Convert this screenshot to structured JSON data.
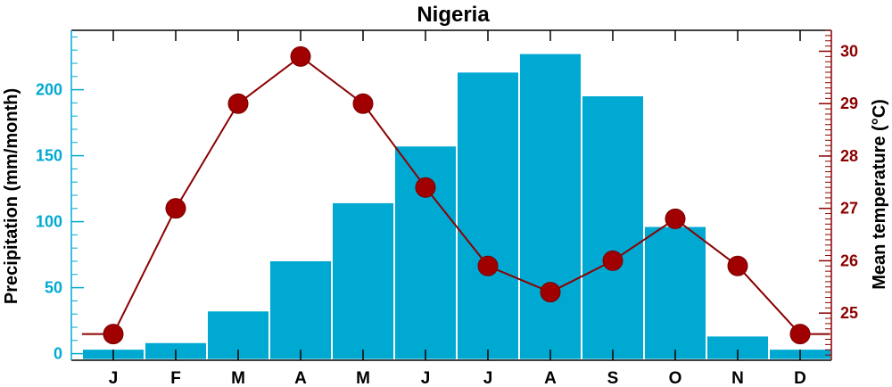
{
  "chart_data": {
    "type": "bar",
    "title": "Nigeria",
    "categories": [
      "J",
      "F",
      "M",
      "A",
      "M",
      "J",
      "J",
      "A",
      "S",
      "O",
      "N",
      "D"
    ],
    "series": [
      {
        "type": "bar",
        "axis": "left",
        "values": [
          3,
          8,
          32,
          70,
          114,
          157,
          213,
          227,
          195,
          96,
          13,
          3
        ]
      },
      {
        "type": "line",
        "axis": "right",
        "values": [
          24.6,
          27.0,
          29.0,
          29.9,
          29.0,
          27.4,
          25.9,
          25.4,
          26.0,
          26.8,
          25.9,
          24.6
        ]
      }
    ],
    "ylabel": "Precipitation (mm/month)",
    "y2label": "Mean temperature (°C)",
    "ylim": [
      -5,
      245
    ],
    "y2lim": [
      24.1,
      30.4
    ],
    "yticks": [
      0,
      50,
      100,
      150,
      200
    ],
    "y2ticks": [
      25,
      26,
      27,
      28,
      29,
      30
    ],
    "grid": false,
    "colors": {
      "bar": "#00a9d2",
      "line": "#8b0000",
      "marker": "#a00000",
      "left_axis": "#00a9d2",
      "right_axis": "#8b0000"
    }
  }
}
